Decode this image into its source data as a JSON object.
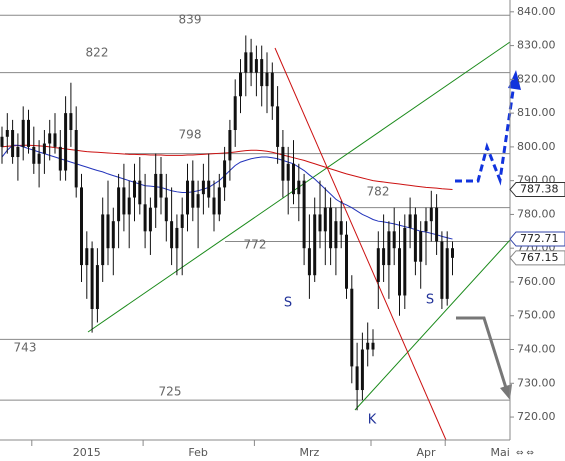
{
  "chart_data": {
    "type": "candlestick",
    "categories": [
      null,
      null,
      null,
      null,
      null,
      null,
      null,
      null,
      null,
      null,
      null,
      null,
      null,
      null,
      null,
      null,
      "2015",
      null,
      null,
      null,
      null,
      null,
      null,
      null,
      null,
      null,
      null,
      null,
      null,
      null,
      null,
      null,
      null,
      null,
      null,
      null,
      null,
      "Feb",
      null,
      null,
      null,
      null,
      null,
      null,
      null,
      null,
      null,
      null,
      null,
      null,
      null,
      null,
      null,
      null,
      null,
      null,
      null,
      null,
      "Mrz",
      null,
      null,
      null,
      null,
      null,
      null,
      null,
      null,
      null,
      null,
      null,
      null,
      null,
      null,
      null,
      null,
      null,
      null,
      null,
      null,
      null,
      "Apr",
      null,
      null,
      null,
      null,
      null,
      null,
      null,
      null,
      null,
      null,
      null,
      null,
      null,
      "Mai",
      null,
      null
    ],
    "open": [
      800,
      803,
      805,
      797,
      800,
      808,
      800,
      795,
      798,
      801,
      804,
      800,
      793,
      810,
      805,
      788,
      765,
      770,
      752,
      765,
      780,
      770,
      778,
      788,
      780,
      785,
      790,
      783,
      775,
      782,
      792,
      785,
      778,
      770,
      776,
      780,
      790,
      782,
      786,
      790,
      785,
      780,
      788,
      796,
      805,
      815,
      822,
      828,
      822,
      826,
      818,
      822,
      812,
      800,
      790,
      795,
      786,
      790,
      770,
      762,
      780,
      775,
      782,
      770,
      778,
      774,
      758,
      735,
      728,
      740,
      742,
      760,
      770,
      765,
      775,
      770,
      756,
      776,
      780,
      766,
      775,
      778,
      782,
      772,
      755,
      770,
      null,
      null,
      null,
      null,
      null,
      null,
      null,
      null,
      null,
      null,
      null
    ],
    "high": [
      806,
      810,
      808,
      804,
      812,
      811,
      806,
      802,
      805,
      808,
      810,
      805,
      815,
      819,
      812,
      792,
      775,
      772,
      770,
      785,
      790,
      782,
      792,
      795,
      790,
      795,
      797,
      792,
      785,
      798,
      797,
      792,
      788,
      780,
      785,
      795,
      796,
      790,
      795,
      798,
      790,
      792,
      800,
      808,
      820,
      826,
      833,
      832,
      830,
      830,
      828,
      825,
      818,
      805,
      800,
      802,
      795,
      792,
      780,
      785,
      790,
      788,
      785,
      782,
      784,
      778,
      762,
      742,
      745,
      748,
      746,
      775,
      780,
      778,
      782,
      778,
      780,
      785,
      782,
      778,
      782,
      787,
      786,
      775,
      775,
      772,
      null,
      null,
      null,
      null,
      null,
      null,
      null,
      null,
      null,
      null,
      null
    ],
    "low": [
      795,
      798,
      795,
      790,
      796,
      798,
      792,
      788,
      792,
      796,
      798,
      790,
      790,
      800,
      785,
      760,
      755,
      745,
      748,
      760,
      765,
      762,
      770,
      775,
      770,
      778,
      780,
      770,
      768,
      776,
      780,
      772,
      765,
      762,
      762,
      775,
      778,
      770,
      780,
      782,
      775,
      778,
      784,
      790,
      800,
      810,
      815,
      818,
      815,
      812,
      810,
      808,
      795,
      785,
      780,
      783,
      778,
      765,
      755,
      760,
      770,
      765,
      765,
      762,
      770,
      755,
      730,
      722,
      725,
      735,
      738,
      752,
      760,
      755,
      765,
      750,
      752,
      770,
      762,
      758,
      765,
      772,
      768,
      752,
      753,
      762,
      null,
      null,
      null,
      null,
      null,
      null,
      null,
      null,
      null,
      null,
      null
    ],
    "close": [
      803,
      805,
      797,
      800,
      808,
      800,
      795,
      798,
      801,
      804,
      800,
      793,
      810,
      805,
      788,
      765,
      770,
      752,
      765,
      780,
      770,
      778,
      788,
      780,
      785,
      790,
      783,
      775,
      782,
      792,
      785,
      778,
      770,
      776,
      780,
      790,
      782,
      786,
      790,
      785,
      780,
      788,
      796,
      805,
      815,
      822,
      828,
      822,
      826,
      818,
      822,
      812,
      800,
      790,
      795,
      786,
      790,
      770,
      762,
      780,
      775,
      782,
      770,
      778,
      774,
      758,
      735,
      728,
      740,
      742,
      740,
      770,
      765,
      775,
      770,
      756,
      776,
      780,
      766,
      775,
      778,
      782,
      772,
      755,
      770,
      767.15,
      null,
      null,
      null,
      null,
      null,
      null,
      null,
      null,
      null,
      null,
      null
    ],
    "candle_color": "#111111",
    "lines": [
      {
        "color": "#cc1111",
        "values": [
          800,
          800.2,
          800.3,
          800.4,
          800.5,
          800.5,
          800.4,
          800.3,
          800.2,
          800,
          799.8,
          799.6,
          799.4,
          799.2,
          799,
          798.8,
          798.6,
          798.5,
          798.4,
          798.3,
          798.2,
          798.1,
          798,
          797.9,
          797.8,
          797.8,
          797.7,
          797.7,
          797.6,
          797.6,
          797.6,
          797.5,
          797.5,
          797.5,
          797.5,
          797.6,
          797.6,
          797.7,
          797.8,
          797.9,
          798,
          798.1,
          798.2,
          798.3,
          798.5,
          798.7,
          798.9,
          799,
          799,
          798.9,
          798.7,
          798.4,
          798,
          797.6,
          797.2,
          796.8,
          796.4,
          796,
          795.5,
          795,
          794.5,
          794,
          793.5,
          793,
          792.5,
          792,
          791.6,
          791.2,
          790.8,
          790.4,
          790,
          789.8,
          789.6,
          789.4,
          789.2,
          789,
          788.8,
          788.6,
          788.4,
          788.2,
          788,
          787.9,
          787.8,
          787.6,
          787.5,
          787.38,
          null,
          null,
          null,
          null,
          null,
          null,
          null,
          null,
          null,
          null,
          null
        ]
      },
      {
        "color": "#2233bb",
        "values": [
          797,
          799,
          800.5,
          800.5,
          800,
          799.5,
          799,
          798.5,
          798,
          797.5,
          797,
          796.5,
          796,
          795.5,
          795,
          794.5,
          794,
          793.5,
          793,
          792.6,
          792,
          791.5,
          791,
          790.5,
          790,
          789.5,
          789,
          788.5,
          788.4,
          788.2,
          788,
          787.5,
          787,
          786.7,
          786.5,
          786.5,
          786.7,
          787,
          787.5,
          788,
          789,
          790,
          791.5,
          793,
          794.5,
          795.5,
          796,
          796.5,
          796.8,
          797,
          797,
          796.8,
          796.5,
          796,
          795.5,
          795,
          794,
          793,
          791.7,
          790.5,
          789,
          787.5,
          786,
          784.5,
          783.5,
          782.8,
          782,
          781,
          780,
          779.3,
          778.5,
          778,
          777.8,
          777.5,
          777.2,
          776.8,
          776.4,
          776,
          775.5,
          775,
          774.8,
          774.4,
          774,
          773.5,
          773.1,
          772.71,
          null,
          null,
          null,
          null,
          null,
          null,
          null,
          null,
          null,
          null,
          null
        ]
      }
    ],
    "ylim": [
      713.5,
      843.5
    ],
    "yticks": [
      {
        "value": 720,
        "label": "720.00"
      },
      {
        "value": 730,
        "label": "730.00"
      },
      {
        "value": 740,
        "label": "740.00"
      },
      {
        "value": 750,
        "label": "750.00"
      },
      {
        "value": 760,
        "label": "760.00"
      },
      {
        "value": 770,
        "label": "770.00"
      },
      {
        "value": 780,
        "label": "780.00"
      },
      {
        "value": 790,
        "label": "790.00"
      },
      {
        "value": 800,
        "label": "800.00"
      },
      {
        "value": 810,
        "label": "810.00"
      },
      {
        "value": 820,
        "label": "820.00"
      },
      {
        "value": 830,
        "label": "830.00"
      },
      {
        "value": 840,
        "label": "840.00"
      }
    ],
    "levels": [
      839,
      822,
      798,
      782,
      772,
      743,
      725
    ],
    "annotations": [
      "S",
      "S",
      "K"
    ]
  }
}
